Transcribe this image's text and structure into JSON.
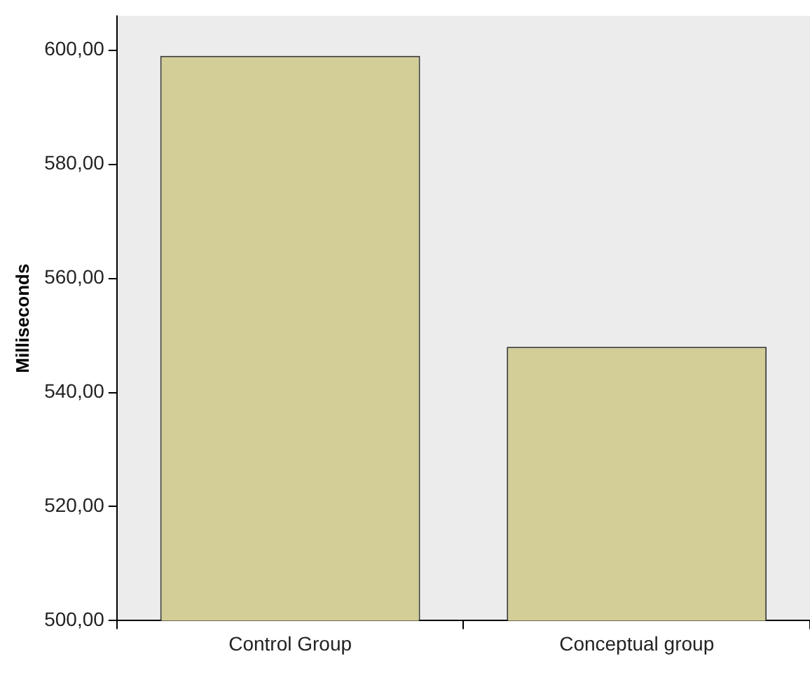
{
  "chart_data": {
    "type": "bar",
    "ylabel": "Milliseconds",
    "categories": [
      "Control Group",
      "Conceptual group"
    ],
    "values": [
      599,
      548
    ],
    "color": "#d3ce97",
    "ylim": [
      500,
      606
    ],
    "yticks": [
      {
        "value": 500,
        "label": "500,00"
      },
      {
        "value": 520,
        "label": "520,00"
      },
      {
        "value": 540,
        "label": "540,00"
      },
      {
        "value": 560,
        "label": "560,00"
      },
      {
        "value": 580,
        "label": "580,00"
      },
      {
        "value": 600,
        "label": "600,00"
      }
    ],
    "grid": false,
    "legend": false
  }
}
